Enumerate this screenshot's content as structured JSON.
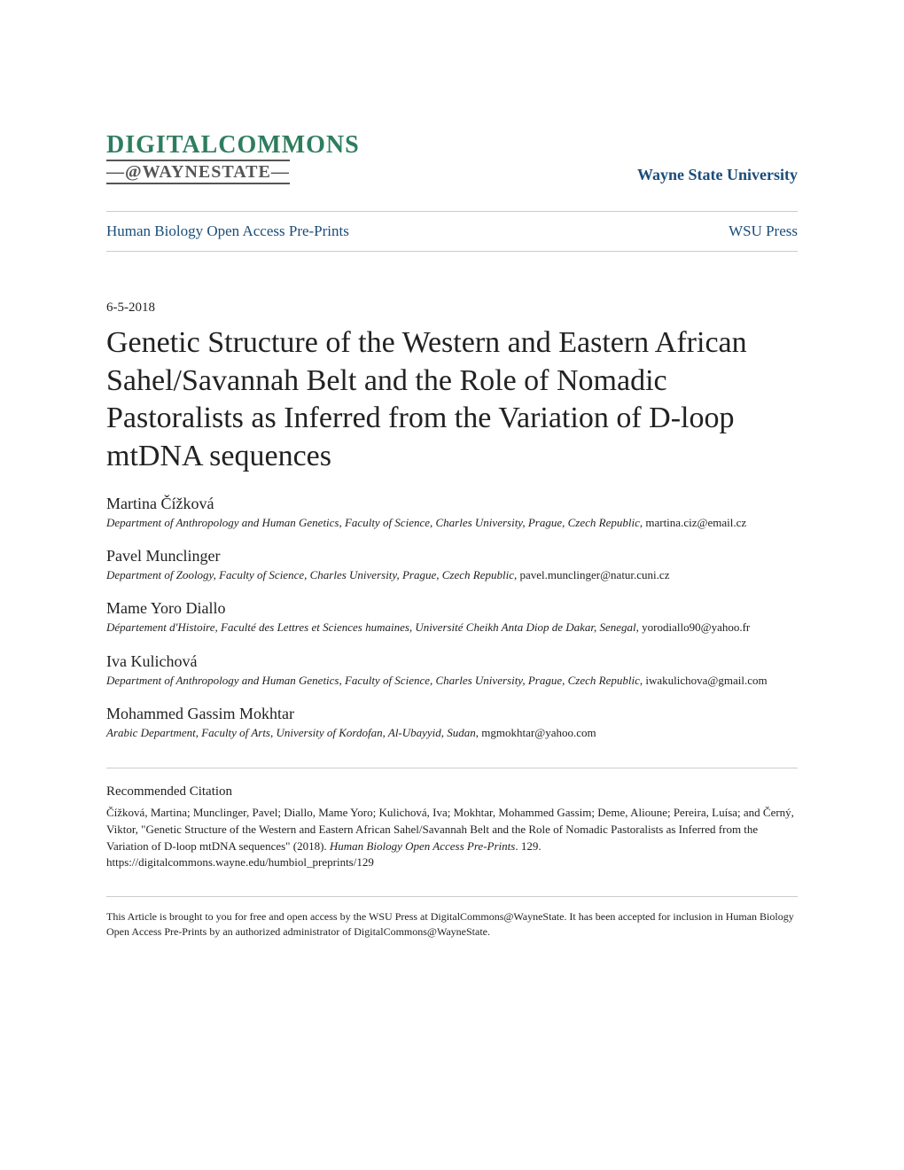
{
  "colors": {
    "logo_green": "#2e7d5f",
    "logo_gray": "#555555",
    "link_blue": "#1a4d7a",
    "text": "#222222",
    "divider": "#cccccc",
    "background": "#ffffff"
  },
  "typography": {
    "title_fontsize": 34,
    "author_name_fontsize": 18,
    "author_affil_fontsize": 13,
    "nav_fontsize": 17,
    "university_fontsize": 18,
    "logo1_fontsize": 28,
    "logo2_fontsize": 20,
    "date_fontsize": 15,
    "citation_heading_fontsize": 15,
    "citation_text_fontsize": 13,
    "footer_fontsize": 12
  },
  "header": {
    "logo_line1": "DIGITALCOMMONS",
    "logo_line2": "—@WAYNESTATE—",
    "university": "Wayne State University"
  },
  "nav": {
    "left": "Human Biology Open Access Pre-Prints",
    "right": "WSU Press"
  },
  "article": {
    "date": "6-5-2018",
    "title": "Genetic Structure of the Western and Eastern African Sahel/Savannah Belt and the Role of Nomadic Pastoralists as Inferred from the Variation of D-loop mtDNA sequences"
  },
  "authors": [
    {
      "name": "Martina Čížková",
      "affiliation_italic": "Department of Anthropology and Human Genetics, Faculty of Science, Charles University, Prague, Czech Republic",
      "email": ", martina.ciz@email.cz"
    },
    {
      "name": "Pavel Munclinger",
      "affiliation_italic": "Department of Zoology, Faculty of Science, Charles University, Prague, Czech Republic",
      "email": ", pavel.munclinger@natur.cuni.cz"
    },
    {
      "name": "Mame Yoro Diallo",
      "affiliation_italic": "Département d'Histoire, Faculté des Lettres et Sciences humaines, Université Cheikh Anta Diop de Dakar, Senegal",
      "email": ", yorodiallo90@yahoo.fr"
    },
    {
      "name": "Iva Kulichová",
      "affiliation_italic": "Department of Anthropology and Human Genetics, Faculty of Science, Charles University, Prague, Czech Republic",
      "email": ", iwakulichova@gmail.com"
    },
    {
      "name": "Mohammed Gassim Mokhtar",
      "affiliation_italic": "Arabic Department, Faculty of Arts, University of Kordofan, Al-Ubayyid, Sudan",
      "email": ", mgmokhtar@yahoo.com"
    }
  ],
  "citation": {
    "heading": "Recommended Citation",
    "text_prefix": "Čížková, Martina; Munclinger, Pavel; Diallo, Mame Yoro; Kulichová, Iva; Mokhtar, Mohammed Gassim; Deme, Alioune; Pereira, Luísa; and Černý, Viktor, \"Genetic Structure of the Western and Eastern African Sahel/Savannah Belt and the Role of Nomadic Pastoralists as Inferred from the Variation of D-loop mtDNA sequences\" (2018). ",
    "text_italic": "Human Biology Open Access Pre-Prints",
    "text_suffix": ". 129.",
    "url": "https://digitalcommons.wayne.edu/humbiol_preprints/129"
  },
  "footer": {
    "text": "This Article is brought to you for free and open access by the WSU Press at DigitalCommons@WayneState. It has been accepted for inclusion in Human Biology Open Access Pre-Prints by an authorized administrator of DigitalCommons@WayneState."
  }
}
